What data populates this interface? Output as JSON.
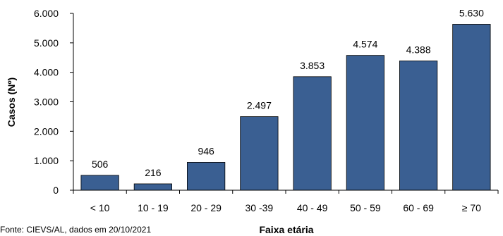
{
  "chart_data": {
    "type": "bar",
    "categories": [
      "< 10",
      "10 - 19",
      "20 - 29",
      "30 -39",
      "40 - 49",
      "50 - 59",
      "60 - 69",
      "≥ 70"
    ],
    "values": [
      506,
      216,
      946,
      2497,
      3853,
      4574,
      4388,
      5630
    ],
    "value_labels": [
      "506",
      "216",
      "946",
      "2.497",
      "3.853",
      "4.574",
      "4.388",
      "5.630"
    ],
    "xlabel": "Faixa etária",
    "ylabel": "Casos (Nº)",
    "ylim": [
      0,
      6000
    ],
    "yticks": [
      0,
      1000,
      2000,
      3000,
      4000,
      5000,
      6000
    ],
    "ytick_labels": [
      "0",
      "1.000",
      "2.000",
      "3.000",
      "4.000",
      "5.000",
      "6.000"
    ],
    "bar_color": "#3a5f92",
    "grid": false,
    "legend": "none"
  },
  "source": "Fonte: CIEVS/AL, dados em 20/10/2021"
}
